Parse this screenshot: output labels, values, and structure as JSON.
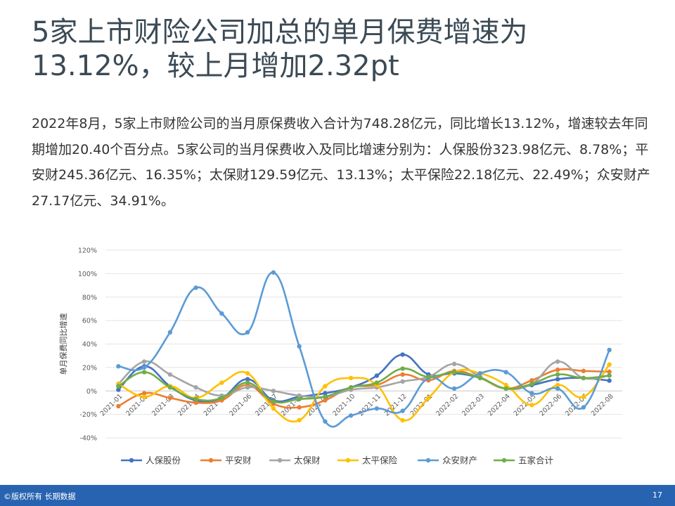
{
  "slide": {
    "title": "5家上市财险公司加总的单月保费增速为13.12%，较上月增加2.32pt",
    "paragraph": "2022年8月，5家上市财险公司的当月原保费收入合计为748.28亿元，同比增长13.12%，增速较去年同期增加20.40个百分点。5家公司的当月保费收入及同比增速分别为：人保股份323.98亿元、8.78%；平安财245.36亿元、16.35%；太保财129.59亿元、13.13%；太平保险22.18亿元、22.49%；众安财产27.17亿元、34.91%。",
    "footer_left": "©版权所有 长期数据",
    "page_number": "17"
  },
  "chart_data": {
    "type": "line",
    "ylabel": "单月保费同比增速",
    "ylim": [
      -40,
      120
    ],
    "yticks": [
      "-40%",
      "-20%",
      "0%",
      "20%",
      "40%",
      "60%",
      "80%",
      "100%",
      "120%"
    ],
    "ytick_values": [
      -40,
      -20,
      0,
      20,
      40,
      60,
      80,
      100,
      120
    ],
    "categories": [
      "2021-01",
      "2021-02",
      "2021-03",
      "2021-04",
      "2021-05",
      "2021-06",
      "2021-07",
      "2021-08",
      "2021-09",
      "2021-10",
      "2021-11",
      "2021-12",
      "2022-01",
      "2022-02",
      "2022-03",
      "2022-04",
      "2022-05",
      "2022-06",
      "2022-07",
      "2022-08"
    ],
    "legend_position": "bottom",
    "grid": true,
    "series": [
      {
        "name": "人保股份",
        "color": "#4472c4",
        "values": [
          1,
          21,
          4,
          -8,
          -6,
          10,
          -8,
          -5,
          -2,
          3,
          13,
          31,
          14,
          15,
          11,
          2,
          5,
          10,
          11,
          8.78
        ]
      },
      {
        "name": "平安财",
        "color": "#ed7d31",
        "values": [
          -13,
          -2,
          -6,
          -10,
          -8,
          5,
          -11,
          -14,
          -8,
          3,
          5,
          14,
          9,
          17,
          11,
          2,
          9,
          18,
          17,
          16.35
        ]
      },
      {
        "name": "太保财",
        "color": "#a5a5a5",
        "values": [
          6,
          25,
          14,
          3,
          -4,
          3,
          0,
          -4,
          -5,
          1,
          3,
          8,
          12,
          23,
          12,
          2,
          6,
          25,
          11,
          13.13
        ]
      },
      {
        "name": "太平保险",
        "color": "#ffc000",
        "values": [
          6,
          -5,
          4,
          -6,
          7,
          15,
          -15,
          -25,
          4,
          11,
          5,
          -25,
          -6,
          16,
          15,
          5,
          -12,
          5,
          -5,
          22.49
        ]
      },
      {
        "name": "众安财产",
        "color": "#5b9bd5",
        "values": [
          21,
          20,
          50,
          88,
          66,
          50,
          101,
          38,
          -26,
          -21,
          -15,
          -17,
          11,
          2,
          15,
          16,
          -2,
          2,
          -14,
          34.91
        ]
      },
      {
        "name": "五家合计",
        "color": "#70ad47",
        "values": [
          4,
          16,
          3,
          -7,
          -6,
          7,
          -9,
          -7,
          -5,
          3,
          7,
          19,
          12,
          16,
          11,
          2,
          6,
          14,
          11,
          13.12
        ]
      }
    ]
  }
}
